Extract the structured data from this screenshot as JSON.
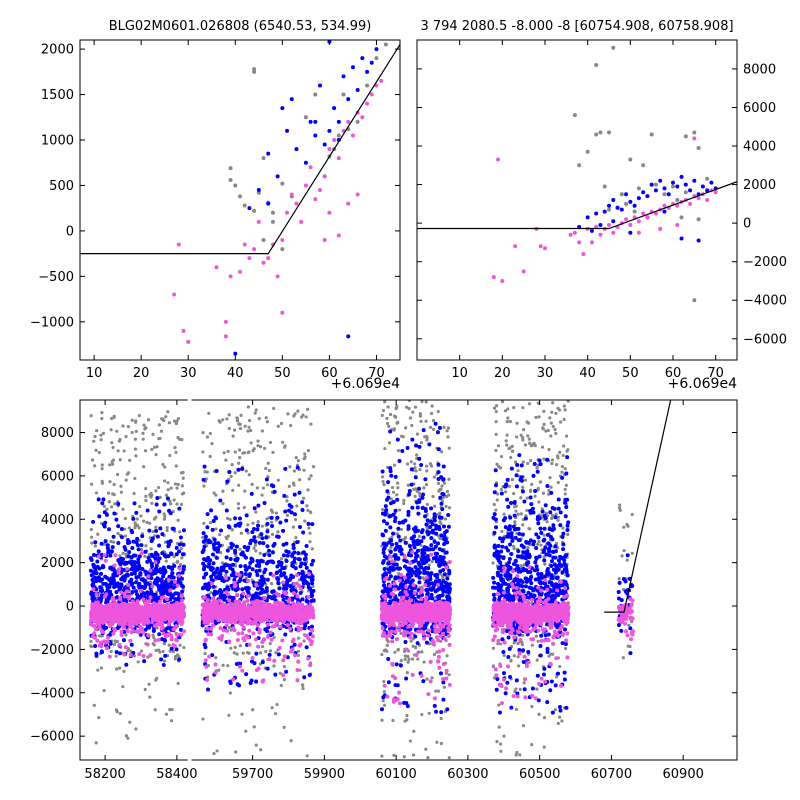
{
  "colors": {
    "grey_series": "#888888",
    "blue_series": "#0000ff",
    "pink_series": "#ee55dd",
    "fit_line": "#000000"
  },
  "x_offset_label": "+6.069e4",
  "chart_data": [
    {
      "id": "top-left",
      "type": "scatter",
      "title": "BLG02M0601.026808 (6540.53, 534.99)",
      "x_offset_label": "+6.069e4",
      "xlim": [
        7,
        75
      ],
      "ylim": [
        -1420,
        2100
      ],
      "xticks": [
        10,
        20,
        30,
        40,
        50,
        60,
        70
      ],
      "yticks": [
        -1000,
        -500,
        0,
        500,
        1000,
        1500,
        2000
      ],
      "ytick_labels": [
        "−1000",
        "−500",
        "0",
        "500",
        "1000",
        "1500",
        "2000"
      ],
      "y_axis_side": "left",
      "fit_line": {
        "x": [
          7,
          47,
          75
        ],
        "y": [
          -250,
          -250,
          2050
        ]
      },
      "series": [
        {
          "color": "grey",
          "points": [
            [
              39,
              690
            ],
            [
              39,
              560
            ],
            [
              40,
              500
            ],
            [
              41,
              380
            ],
            [
              42,
              280
            ],
            [
              44,
              1780
            ],
            [
              44,
              1750
            ],
            [
              46,
              800
            ],
            [
              45,
              420
            ],
            [
              47,
              310
            ],
            [
              48,
              200
            ],
            [
              48,
              100
            ],
            [
              50,
              520
            ],
            [
              52,
              380
            ],
            [
              53,
              900
            ],
            [
              55,
              1250
            ],
            [
              57,
              1500
            ],
            [
              59,
              600
            ],
            [
              60,
              820
            ],
            [
              62,
              1050
            ],
            [
              64,
              1120
            ],
            [
              66,
              1200
            ],
            [
              68,
              1600
            ],
            [
              70,
              1900
            ],
            [
              72,
              2050
            ],
            [
              46,
              -100
            ],
            [
              50,
              -200
            ],
            [
              44,
              220
            ],
            [
              61,
              900
            ],
            [
              63,
              1500
            ]
          ]
        },
        {
          "color": "blue",
          "points": [
            [
              43,
              250
            ],
            [
              45,
              450
            ],
            [
              47,
              300
            ],
            [
              47,
              850
            ],
            [
              49,
              600
            ],
            [
              50,
              1350
            ],
            [
              51,
              1100
            ],
            [
              53,
              900
            ],
            [
              55,
              750
            ],
            [
              56,
              1200
            ],
            [
              57,
              1050
            ],
            [
              58,
              1600
            ],
            [
              59,
              950
            ],
            [
              60,
              1100
            ],
            [
              61,
              1350
            ],
            [
              62,
              1200
            ],
            [
              63,
              1700
            ],
            [
              64,
              1450
            ],
            [
              65,
              1800
            ],
            [
              66,
              1550
            ],
            [
              67,
              1900
            ],
            [
              68,
              1750
            ],
            [
              70,
              2000
            ],
            [
              69,
              1850
            ],
            [
              40,
              -1350
            ],
            [
              64,
              -1160
            ],
            [
              60,
              2080
            ],
            [
              62,
              1000
            ],
            [
              57,
              1200
            ],
            [
              52,
              1450
            ]
          ]
        },
        {
          "color": "pink",
          "points": [
            [
              27,
              -700
            ],
            [
              28,
              -150
            ],
            [
              29,
              -1100
            ],
            [
              30,
              -1220
            ],
            [
              36,
              -400
            ],
            [
              38,
              -1000
            ],
            [
              38,
              -1160
            ],
            [
              39,
              -500
            ],
            [
              41,
              -450
            ],
            [
              42,
              -150
            ],
            [
              43,
              -300
            ],
            [
              44,
              -200
            ],
            [
              45,
              100
            ],
            [
              46,
              -350
            ],
            [
              47,
              -300
            ],
            [
              48,
              -150
            ],
            [
              49,
              -500
            ],
            [
              50,
              -100
            ],
            [
              50,
              -900
            ],
            [
              51,
              200
            ],
            [
              52,
              400
            ],
            [
              53,
              300
            ],
            [
              54,
              100
            ],
            [
              55,
              500
            ],
            [
              56,
              700
            ],
            [
              57,
              350
            ],
            [
              58,
              450
            ],
            [
              59,
              600
            ],
            [
              60,
              900
            ],
            [
              61,
              1000
            ],
            [
              62,
              800
            ],
            [
              63,
              1100
            ],
            [
              64,
              1200
            ],
            [
              65,
              1050
            ],
            [
              66,
              1300
            ],
            [
              67,
              1250
            ],
            [
              68,
              1400
            ],
            [
              69,
              1500
            ],
            [
              70,
              1600
            ],
            [
              71,
              1650
            ],
            [
              59,
              -100
            ],
            [
              60,
              200
            ],
            [
              62,
              -50
            ],
            [
              64,
              300
            ],
            [
              66,
              400
            ]
          ]
        }
      ]
    },
    {
      "id": "top-right",
      "type": "scatter",
      "title": "3 794 2080.5 -8.000 -8 [60754.908, 60758.908]",
      "x_offset_label": "+6.069e4",
      "xlim": [
        0,
        75
      ],
      "ylim": [
        -7100,
        9500
      ],
      "xticks": [
        10,
        20,
        30,
        40,
        50,
        60,
        70
      ],
      "yticks": [
        -6000,
        -4000,
        -2000,
        0,
        2000,
        4000,
        6000,
        8000
      ],
      "ytick_labels": [
        "−6000",
        "−4000",
        "−2000",
        "0",
        "2000",
        "4000",
        "6000",
        "8000"
      ],
      "y_axis_side": "right",
      "fit_line": {
        "x": [
          0,
          45,
          75
        ],
        "y": [
          -280,
          -280,
          2150
        ]
      },
      "series": [
        {
          "color": "grey",
          "points": [
            [
              42,
              8200
            ],
            [
              46,
              9100
            ],
            [
              37,
              5600
            ],
            [
              42,
              4600
            ],
            [
              43,
              4700
            ],
            [
              45,
              4700
            ],
            [
              55,
              4600
            ],
            [
              40,
              3700
            ],
            [
              38,
              3000
            ],
            [
              50,
              3300
            ],
            [
              53,
              3000
            ],
            [
              63,
              4500
            ],
            [
              65,
              4700
            ],
            [
              66,
              3900
            ],
            [
              60,
              1900
            ],
            [
              65,
              -4000
            ],
            [
              44,
              1900
            ],
            [
              48,
              1500
            ],
            [
              52,
              1800
            ],
            [
              56,
              2000
            ],
            [
              58,
              1500
            ],
            [
              61,
              1200
            ],
            [
              63,
              1600
            ],
            [
              68,
              2300
            ],
            [
              45,
              700
            ],
            [
              47,
              800
            ],
            [
              49,
              1000
            ],
            [
              51,
              600
            ],
            [
              59,
              800
            ],
            [
              62,
              300
            ],
            [
              66,
              200
            ]
          ]
        },
        {
          "color": "blue",
          "points": [
            [
              38,
              -200
            ],
            [
              40,
              300
            ],
            [
              42,
              500
            ],
            [
              44,
              600
            ],
            [
              45,
              900
            ],
            [
              46,
              1200
            ],
            [
              47,
              800
            ],
            [
              48,
              700
            ],
            [
              49,
              1500
            ],
            [
              50,
              1100
            ],
            [
              51,
              900
            ],
            [
              52,
              1300
            ],
            [
              53,
              1600
            ],
            [
              54,
              1400
            ],
            [
              55,
              2000
            ],
            [
              56,
              1700
            ],
            [
              57,
              2200
            ],
            [
              58,
              1800
            ],
            [
              59,
              1500
            ],
            [
              60,
              2100
            ],
            [
              61,
              1900
            ],
            [
              62,
              2400
            ],
            [
              63,
              2000
            ],
            [
              64,
              1700
            ],
            [
              65,
              2200
            ],
            [
              66,
              1500
            ],
            [
              67,
              1900
            ],
            [
              68,
              1700
            ],
            [
              69,
              2100
            ],
            [
              70,
              1800
            ],
            [
              41,
              -400
            ],
            [
              43,
              -100
            ],
            [
              46,
              100
            ],
            [
              50,
              -500
            ],
            [
              54,
              300
            ],
            [
              58,
              600
            ],
            [
              62,
              -800
            ],
            [
              66,
              -900
            ]
          ]
        },
        {
          "color": "pink",
          "points": [
            [
              19,
              3300
            ],
            [
              18,
              -2800
            ],
            [
              20,
              -3000
            ],
            [
              23,
              -1200
            ],
            [
              25,
              -2500
            ],
            [
              28,
              -300
            ],
            [
              29,
              -1200
            ],
            [
              30,
              -1300
            ],
            [
              36,
              -600
            ],
            [
              37,
              -500
            ],
            [
              38,
              -1000
            ],
            [
              39,
              -1600
            ],
            [
              40,
              -300
            ],
            [
              41,
              -1000
            ],
            [
              42,
              -200
            ],
            [
              43,
              -600
            ],
            [
              44,
              -300
            ],
            [
              45,
              -100
            ],
            [
              46,
              -500
            ],
            [
              47,
              -200
            ],
            [
              48,
              0
            ],
            [
              49,
              200
            ],
            [
              50,
              -100
            ],
            [
              51,
              300
            ],
            [
              52,
              100
            ],
            [
              53,
              500
            ],
            [
              54,
              300
            ],
            [
              55,
              600
            ],
            [
              56,
              500
            ],
            [
              57,
              700
            ],
            [
              58,
              900
            ],
            [
              59,
              800
            ],
            [
              60,
              1000
            ],
            [
              61,
              900
            ],
            [
              62,
              1100
            ],
            [
              63,
              1200
            ],
            [
              64,
              1000
            ],
            [
              65,
              1400
            ],
            [
              66,
              1300
            ],
            [
              67,
              1500
            ],
            [
              68,
              1200
            ],
            [
              69,
              1700
            ],
            [
              70,
              1600
            ],
            [
              65,
              4400
            ],
            [
              52,
              -500
            ],
            [
              57,
              -300
            ],
            [
              61,
              -100
            ]
          ]
        }
      ]
    },
    {
      "id": "bottom",
      "type": "scatter",
      "xlim": [
        58130,
        61050
      ],
      "ylim": [
        -7100,
        9500
      ],
      "xticks": [
        58200,
        58400,
        59700,
        59900,
        60100,
        60300,
        60500,
        60700,
        60900
      ],
      "yticks": [
        -6000,
        -4000,
        -2000,
        0,
        2000,
        4000,
        6000,
        8000
      ],
      "ytick_labels": [
        "−6000",
        "−4000",
        "−2000",
        "0",
        "2000",
        "4000",
        "6000",
        "8000"
      ],
      "y_axis_side": "left",
      "axis_break": {
        "after": 58430,
        "before": 59530
      },
      "segments": [
        {
          "x0": 58160,
          "x1": 58420,
          "grey_top": 9000,
          "blue_top": 5000,
          "pink_top": 2500,
          "pink_bottom": -2500,
          "grey_bottom": -6500
        },
        {
          "x0": 59560,
          "x1": 59870,
          "grey_top": 9200,
          "blue_top": 6500,
          "pink_top": 1500,
          "pink_bottom": -3500,
          "grey_bottom": -7000
        },
        {
          "x0": 60060,
          "x1": 60250,
          "grey_top": 9500,
          "blue_top": 8500,
          "pink_top": 2500,
          "pink_bottom": -4500,
          "grey_bottom": -7000
        },
        {
          "x0": 60370,
          "x1": 60580,
          "grey_top": 9500,
          "blue_top": 7000,
          "pink_top": 1800,
          "pink_bottom": -4500,
          "grey_bottom": -7000
        },
        {
          "x0": 60720,
          "x1": 60760,
          "grey_top": 4800,
          "blue_top": 2500,
          "pink_top": 2000,
          "pink_bottom": -2000,
          "grey_bottom": -5000
        }
      ],
      "fit_line": {
        "x": [
          60680,
          60735,
          60865
        ],
        "y": [
          -280,
          -280,
          9500
        ]
      }
    }
  ]
}
